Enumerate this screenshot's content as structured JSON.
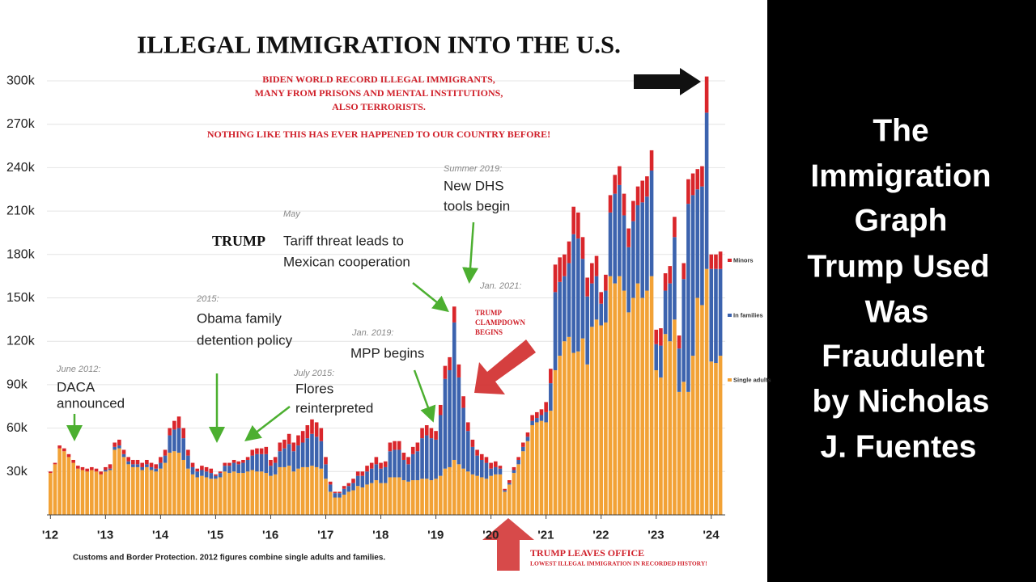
{
  "chart_data": {
    "type": "stacked_bar",
    "title": "ILLEGAL IMMIGRATION INTO THE U.S.",
    "source": "Customs and Border Protection. 2012 figures combine single adults and families.",
    "annotations": [
      "BIDEN WORLD RECORD ILLEGAL IMMIGRANTS,",
      "MANY FROM PRISONS AND MENTAL INSTITUTIONS,",
      "ALSO TERRORISTS.",
      "NOTHING LIKE THIS HAS EVER HAPPENED TO OUR COUNTRY BEFORE!",
      "June 2012:",
      "DACA",
      "announced",
      "2015:",
      "Obama family",
      "detention policy",
      "July 2015:",
      "Flores",
      "reinterpreted",
      "May",
      "TRUMP",
      "Tariff threat leads to",
      "Mexican cooperation",
      "Jan. 2019:",
      "MPP begins",
      "Summer 2019:",
      "New DHS",
      "tools begin",
      "Jan. 2021:",
      "TRUMP",
      "CLAMPDOWN",
      "BEGINS",
      "TRUMP LEAVES OFFICE",
      "LOWEST ILLEGAL IMMIGRATION IN RECORDED HISTORY!"
    ],
    "categories": [
      "'12",
      null,
      null,
      null,
      null,
      null,
      null,
      null,
      null,
      null,
      null,
      null,
      "'13",
      null,
      null,
      null,
      null,
      null,
      null,
      null,
      null,
      null,
      null,
      null,
      "'14",
      null,
      null,
      null,
      null,
      null,
      null,
      null,
      null,
      null,
      null,
      null,
      "'15",
      null,
      null,
      null,
      null,
      null,
      null,
      null,
      null,
      null,
      null,
      null,
      "'16",
      null,
      null,
      null,
      null,
      null,
      null,
      null,
      null,
      null,
      null,
      null,
      "'17",
      null,
      null,
      null,
      null,
      null,
      null,
      null,
      null,
      null,
      null,
      null,
      "'18",
      null,
      null,
      null,
      null,
      null,
      null,
      null,
      null,
      null,
      null,
      null,
      "'19",
      null,
      null,
      null,
      null,
      null,
      null,
      null,
      null,
      null,
      null,
      null,
      "'20",
      null,
      null,
      null,
      null,
      null,
      null,
      null,
      null,
      null,
      null,
      null,
      "'21",
      null,
      null,
      null,
      null,
      null,
      null,
      null,
      null,
      null,
      null,
      null,
      "'22",
      null,
      null,
      null,
      null,
      null,
      null,
      null,
      null,
      null,
      null,
      null,
      "'23",
      null,
      null,
      null,
      null,
      null,
      null,
      null,
      null,
      null,
      null,
      null,
      "'24",
      null,
      null
    ],
    "series": [
      {
        "name": "Single adults",
        "color": "#f2a236",
        "values": [
          29000,
          35000,
          46000,
          44000,
          40000,
          36000,
          32000,
          31000,
          30000,
          31000,
          30000,
          28000,
          30000,
          31000,
          45000,
          46000,
          40000,
          35000,
          33000,
          33000,
          31000,
          33000,
          31000,
          30000,
          32000,
          36000,
          43000,
          44000,
          43000,
          38000,
          32000,
          28000,
          26000,
          27000,
          26000,
          25000,
          25000,
          26000,
          30000,
          29000,
          30000,
          29000,
          29000,
          30000,
          31000,
          30000,
          30000,
          29000,
          27000,
          28000,
          33000,
          33000,
          34000,
          30000,
          32000,
          33000,
          33000,
          34000,
          33000,
          32000,
          25000,
          16000,
          12000,
          12000,
          14000,
          16000,
          17000,
          20000,
          19000,
          21000,
          22000,
          24000,
          22000,
          22000,
          26000,
          26000,
          26000,
          24000,
          23000,
          24000,
          24000,
          25000,
          25000,
          24000,
          25000,
          27000,
          32000,
          33000,
          38000,
          35000,
          32000,
          30000,
          28000,
          27000,
          26000,
          25000,
          27000,
          28000,
          28000,
          16000,
          21000,
          29000,
          35000,
          44000,
          51000,
          62000,
          64000,
          65000,
          64000,
          72000,
          100000,
          110000,
          120000,
          123000,
          112000,
          113000,
          122000,
          104000,
          130000,
          135000,
          131000,
          133000,
          165000,
          160000,
          165000,
          155000,
          140000,
          150000,
          160000,
          150000,
          155000,
          165000,
          100000,
          95000,
          125000,
          120000,
          135000,
          85000,
          92000,
          85000,
          110000,
          150000,
          145000,
          170000,
          106000,
          105000,
          110000
        ]
      },
      {
        "name": "In families",
        "color": "#3c63ae",
        "values": [
          0,
          0,
          0,
          0,
          0,
          0,
          0,
          0,
          0,
          0,
          0,
          0,
          1000,
          1000,
          2000,
          2000,
          2000,
          2000,
          2000,
          2000,
          2000,
          2000,
          2000,
          2000,
          4000,
          5000,
          12000,
          15000,
          17000,
          15000,
          9000,
          5000,
          4000,
          4000,
          4000,
          4000,
          2000,
          3000,
          4000,
          5000,
          6000,
          6000,
          7000,
          8000,
          10000,
          12000,
          12000,
          13000,
          7000,
          8000,
          11000,
          13000,
          15000,
          14000,
          16000,
          17000,
          20000,
          22000,
          21000,
          19000,
          10000,
          5000,
          3000,
          3000,
          4000,
          4000,
          5000,
          7000,
          8000,
          9000,
          10000,
          11000,
          10000,
          11000,
          18000,
          19000,
          19000,
          14000,
          12000,
          18000,
          20000,
          28000,
          30000,
          29000,
          27000,
          42000,
          62000,
          67000,
          95000,
          60000,
          42000,
          28000,
          19000,
          14000,
          12000,
          11000,
          5000,
          5000,
          4000,
          1000,
          1000,
          2000,
          3000,
          3000,
          3000,
          3000,
          3000,
          4000,
          7000,
          19000,
          54000,
          51000,
          45000,
          51000,
          82000,
          78000,
          55000,
          47000,
          30000,
          30000,
          15000,
          22000,
          44000,
          62000,
          63000,
          52000,
          45000,
          53000,
          54000,
          66000,
          65000,
          73000,
          18000,
          22000,
          30000,
          40000,
          57000,
          30000,
          71000,
          130000,
          111000,
          75000,
          82000,
          108000,
          64000,
          65000,
          60000
        ]
      },
      {
        "name": "Minors",
        "color": "#d9262b",
        "values": [
          1000,
          1000,
          2000,
          2000,
          2000,
          2000,
          2000,
          2000,
          2000,
          2000,
          2000,
          2000,
          2000,
          3000,
          3000,
          4000,
          3000,
          3000,
          3000,
          3000,
          3000,
          3000,
          3000,
          3000,
          4000,
          4000,
          5000,
          6000,
          8000,
          7000,
          4000,
          3000,
          2000,
          3000,
          3000,
          3000,
          1000,
          1000,
          2000,
          2000,
          2000,
          2000,
          2000,
          2000,
          4000,
          4000,
          4000,
          5000,
          4000,
          4000,
          6000,
          6000,
          7000,
          6000,
          7000,
          8000,
          9000,
          10000,
          10000,
          9000,
          5000,
          2000,
          1000,
          1000,
          2000,
          2000,
          3000,
          3000,
          3000,
          4000,
          4000,
          5000,
          4000,
          4000,
          6000,
          6000,
          6000,
          5000,
          5000,
          5000,
          6000,
          7000,
          7000,
          7000,
          6000,
          7000,
          9000,
          9000,
          11000,
          9000,
          8000,
          6000,
          5000,
          4000,
          4000,
          4000,
          4000,
          4000,
          2000,
          1000,
          2000,
          2000,
          2000,
          3000,
          3000,
          4000,
          4000,
          4000,
          7000,
          10000,
          19000,
          17000,
          15000,
          15000,
          19000,
          18000,
          15000,
          13000,
          14000,
          14000,
          8000,
          11000,
          12000,
          13000,
          13000,
          15000,
          13000,
          14000,
          13000,
          15000,
          14000,
          14000,
          10000,
          12000,
          12000,
          12000,
          14000,
          9000,
          11000,
          17000,
          15000,
          14000,
          14000,
          25000,
          10000,
          10000,
          12000
        ]
      }
    ],
    "ylim": [
      0,
      315000
    ],
    "yticks": [
      {
        "value": 30000,
        "label": "30k"
      },
      {
        "value": 60000,
        "label": "60k"
      },
      {
        "value": 90000,
        "label": "90k"
      },
      {
        "value": 120000,
        "label": "120k"
      },
      {
        "value": 150000,
        "label": "150k"
      },
      {
        "value": 180000,
        "label": "180k"
      },
      {
        "value": 210000,
        "label": "210k"
      },
      {
        "value": 240000,
        "label": "240k"
      },
      {
        "value": 270000,
        "label": "270k"
      },
      {
        "value": 300000,
        "label": "300k"
      }
    ],
    "grid": true
  },
  "side_panel": {
    "lines": [
      "The",
      "Immigration",
      "Graph",
      "Trump Used",
      "Was",
      "Fraudulent",
      "by Nicholas",
      "J. Fuentes"
    ]
  }
}
